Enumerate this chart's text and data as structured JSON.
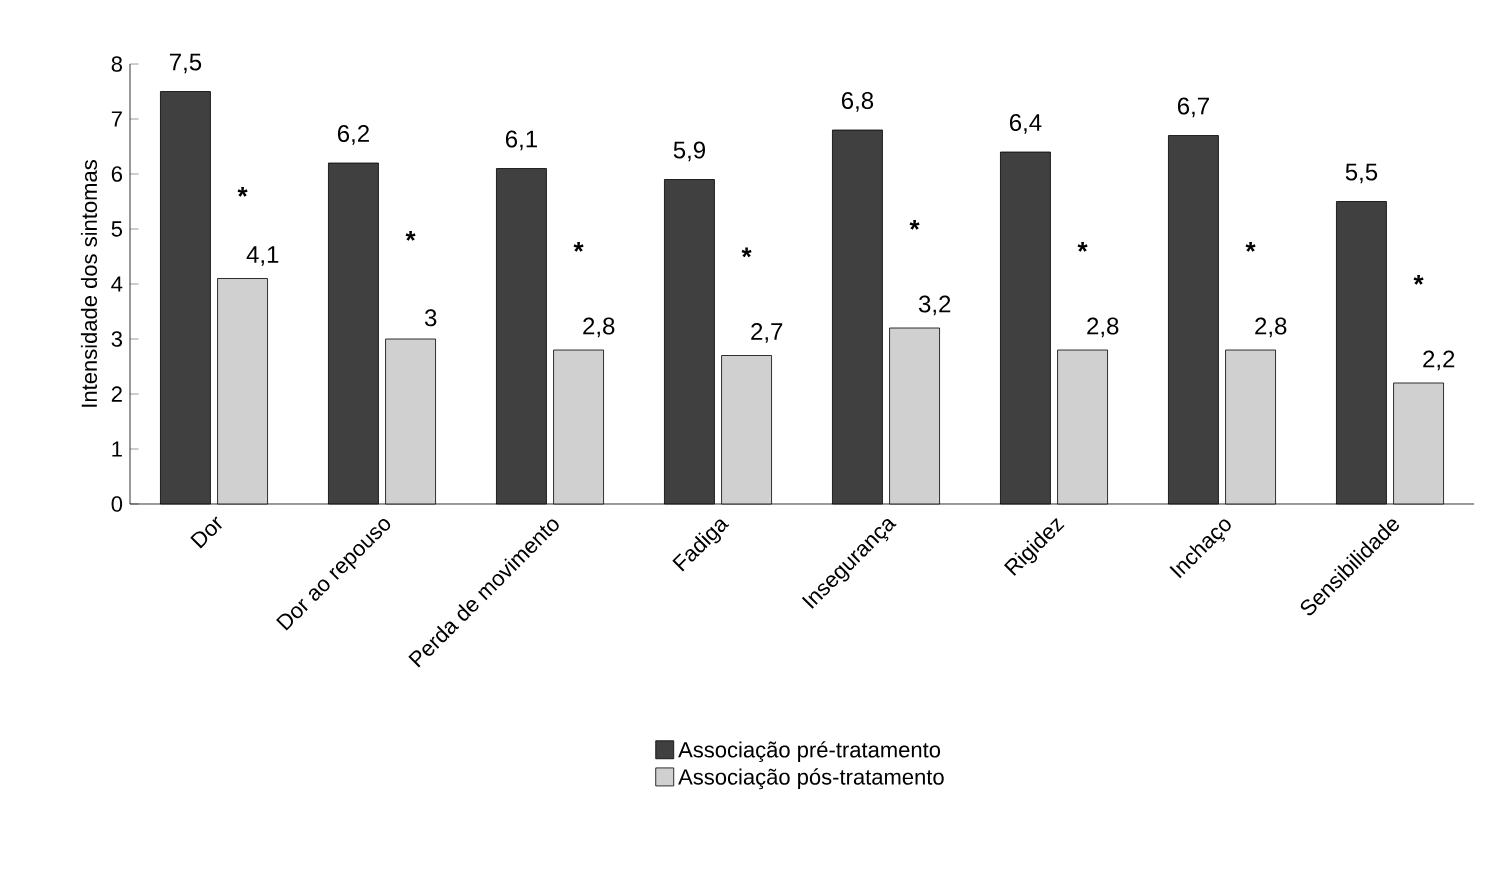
{
  "chart_data": {
    "type": "bar",
    "ylabel": "Intensidade dos sintomas",
    "categories": [
      "Dor",
      "Dor ao repouso",
      "Perda de movimento",
      "Fadiga",
      "Insegurança",
      "Rigidez",
      "Inchaço",
      "Sensibilidade"
    ],
    "series": [
      {
        "name": "Associação  pré-tratamento",
        "color": "#404040",
        "values": [
          7.5,
          6.2,
          6.1,
          5.9,
          6.8,
          6.4,
          6.7,
          5.5
        ],
        "value_labels": [
          "7,5",
          "6,2",
          "6,1",
          "5,9",
          "6,8",
          "6,4",
          "6,7",
          "5,5"
        ]
      },
      {
        "name": "Associação  pós-tratamento",
        "color": "#d0d0d0",
        "values": [
          4.1,
          3,
          2.8,
          2.7,
          3.2,
          2.8,
          2.8,
          2.2
        ],
        "value_labels": [
          "4,1",
          "3",
          "2,8",
          "2,7",
          "3,2",
          "2,8",
          "2,8",
          "2,2"
        ]
      }
    ],
    "annotations": [
      {
        "text": "*",
        "x": "Dor",
        "y": 5.6
      },
      {
        "text": "*",
        "x": "Dor ao repouso",
        "y": 4.8
      },
      {
        "text": "*",
        "x": "Perda de movimento",
        "y": 4.6
      },
      {
        "text": "*",
        "x": "Fadiga",
        "y": 4.5
      },
      {
        "text": "*",
        "x": "Insegurança",
        "y": 5.0
      },
      {
        "text": "*",
        "x": "Rigidez",
        "y": 4.6
      },
      {
        "text": "*",
        "x": "Inchaço",
        "y": 4.6
      },
      {
        "text": "*",
        "x": "Sensibilidade",
        "y": 4.0
      }
    ],
    "ylim": [
      0,
      8
    ],
    "yticks": [
      0,
      1,
      2,
      3,
      4,
      5,
      6,
      7,
      8
    ],
    "grid": false,
    "legend": "bottom"
  }
}
